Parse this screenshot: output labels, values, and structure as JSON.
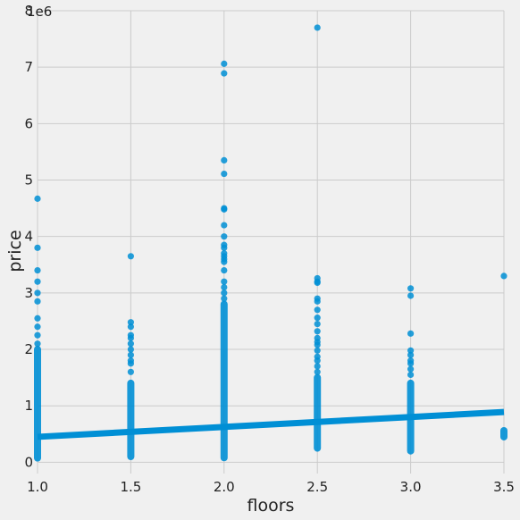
{
  "chart_data": {
    "type": "scatter",
    "title": "",
    "xlabel": "floors",
    "ylabel": "price",
    "y_offset_text": "1e6",
    "xlim": [
      1.0,
      3.5
    ],
    "ylim": [
      -200000,
      8000000
    ],
    "x_ticks": [
      1.0,
      1.5,
      2.0,
      2.5,
      3.0,
      3.5
    ],
    "x_tick_labels": [
      "1.0",
      "1.5",
      "2.0",
      "2.5",
      "3.0",
      "3.5"
    ],
    "y_ticks": [
      0,
      1000000,
      2000000,
      3000000,
      4000000,
      5000000,
      6000000,
      7000000,
      8000000
    ],
    "y_tick_labels": [
      "0",
      "1",
      "2",
      "3",
      "4",
      "5",
      "6",
      "7",
      "8"
    ],
    "grid": true,
    "point_color": "#008fd5",
    "line_color": "#008fd5",
    "background": "#f0f0f0",
    "strips": [
      {
        "x": 1.0,
        "min": 75000,
        "max": 2000000
      },
      {
        "x": 1.5,
        "min": 100000,
        "max": 1400000
      },
      {
        "x": 2.0,
        "min": 80000,
        "max": 2800000
      },
      {
        "x": 2.5,
        "min": 250000,
        "max": 1500000
      },
      {
        "x": 3.0,
        "min": 200000,
        "max": 1400000
      },
      {
        "x": 3.5,
        "min": 450000,
        "max": 560000
      }
    ],
    "outliers": [
      {
        "x": 1.0,
        "y": 4670000
      },
      {
        "x": 1.0,
        "y": 3800000
      },
      {
        "x": 1.0,
        "y": 3400000
      },
      {
        "x": 1.0,
        "y": 3200000
      },
      {
        "x": 1.0,
        "y": 3000000
      },
      {
        "x": 1.0,
        "y": 2850000
      },
      {
        "x": 1.0,
        "y": 2550000
      },
      {
        "x": 1.0,
        "y": 2400000
      },
      {
        "x": 1.0,
        "y": 2250000
      },
      {
        "x": 1.0,
        "y": 2100000
      },
      {
        "x": 1.5,
        "y": 3650000
      },
      {
        "x": 1.5,
        "y": 2480000
      },
      {
        "x": 1.5,
        "y": 2400000
      },
      {
        "x": 1.5,
        "y": 2250000
      },
      {
        "x": 1.5,
        "y": 2200000
      },
      {
        "x": 1.5,
        "y": 2100000
      },
      {
        "x": 1.5,
        "y": 2000000
      },
      {
        "x": 1.5,
        "y": 1900000
      },
      {
        "x": 1.5,
        "y": 1800000
      },
      {
        "x": 1.5,
        "y": 1750000
      },
      {
        "x": 1.5,
        "y": 1600000
      },
      {
        "x": 2.0,
        "y": 7060000
      },
      {
        "x": 2.0,
        "y": 6890000
      },
      {
        "x": 2.0,
        "y": 5350000
      },
      {
        "x": 2.0,
        "y": 5110000
      },
      {
        "x": 2.0,
        "y": 4500000
      },
      {
        "x": 2.0,
        "y": 4480000
      },
      {
        "x": 2.0,
        "y": 4200000
      },
      {
        "x": 2.0,
        "y": 4000000
      },
      {
        "x": 2.0,
        "y": 3850000
      },
      {
        "x": 2.0,
        "y": 3800000
      },
      {
        "x": 2.0,
        "y": 3700000
      },
      {
        "x": 2.0,
        "y": 3650000
      },
      {
        "x": 2.0,
        "y": 3600000
      },
      {
        "x": 2.0,
        "y": 3550000
      },
      {
        "x": 2.0,
        "y": 3400000
      },
      {
        "x": 2.0,
        "y": 3200000
      },
      {
        "x": 2.0,
        "y": 3100000
      },
      {
        "x": 2.0,
        "y": 3000000
      },
      {
        "x": 2.0,
        "y": 2900000
      },
      {
        "x": 2.5,
        "y": 7700000
      },
      {
        "x": 2.5,
        "y": 3260000
      },
      {
        "x": 2.5,
        "y": 3200000
      },
      {
        "x": 2.5,
        "y": 3180000
      },
      {
        "x": 2.5,
        "y": 2900000
      },
      {
        "x": 2.5,
        "y": 2850000
      },
      {
        "x": 2.5,
        "y": 2700000
      },
      {
        "x": 2.5,
        "y": 2560000
      },
      {
        "x": 2.5,
        "y": 2450000
      },
      {
        "x": 2.5,
        "y": 2320000
      },
      {
        "x": 2.5,
        "y": 2200000
      },
      {
        "x": 2.5,
        "y": 2130000
      },
      {
        "x": 2.5,
        "y": 2080000
      },
      {
        "x": 2.5,
        "y": 1980000
      },
      {
        "x": 2.5,
        "y": 1870000
      },
      {
        "x": 2.5,
        "y": 1800000
      },
      {
        "x": 2.5,
        "y": 1700000
      },
      {
        "x": 2.5,
        "y": 1600000
      },
      {
        "x": 3.0,
        "y": 3080000
      },
      {
        "x": 3.0,
        "y": 2950000
      },
      {
        "x": 3.0,
        "y": 2280000
      },
      {
        "x": 3.0,
        "y": 1980000
      },
      {
        "x": 3.0,
        "y": 1900000
      },
      {
        "x": 3.0,
        "y": 1800000
      },
      {
        "x": 3.0,
        "y": 1750000
      },
      {
        "x": 3.0,
        "y": 1650000
      },
      {
        "x": 3.0,
        "y": 1550000
      },
      {
        "x": 3.5,
        "y": 3300000
      }
    ],
    "regression": {
      "x": [
        1.0,
        3.5
      ],
      "y": [
        450000,
        890000
      ]
    }
  }
}
